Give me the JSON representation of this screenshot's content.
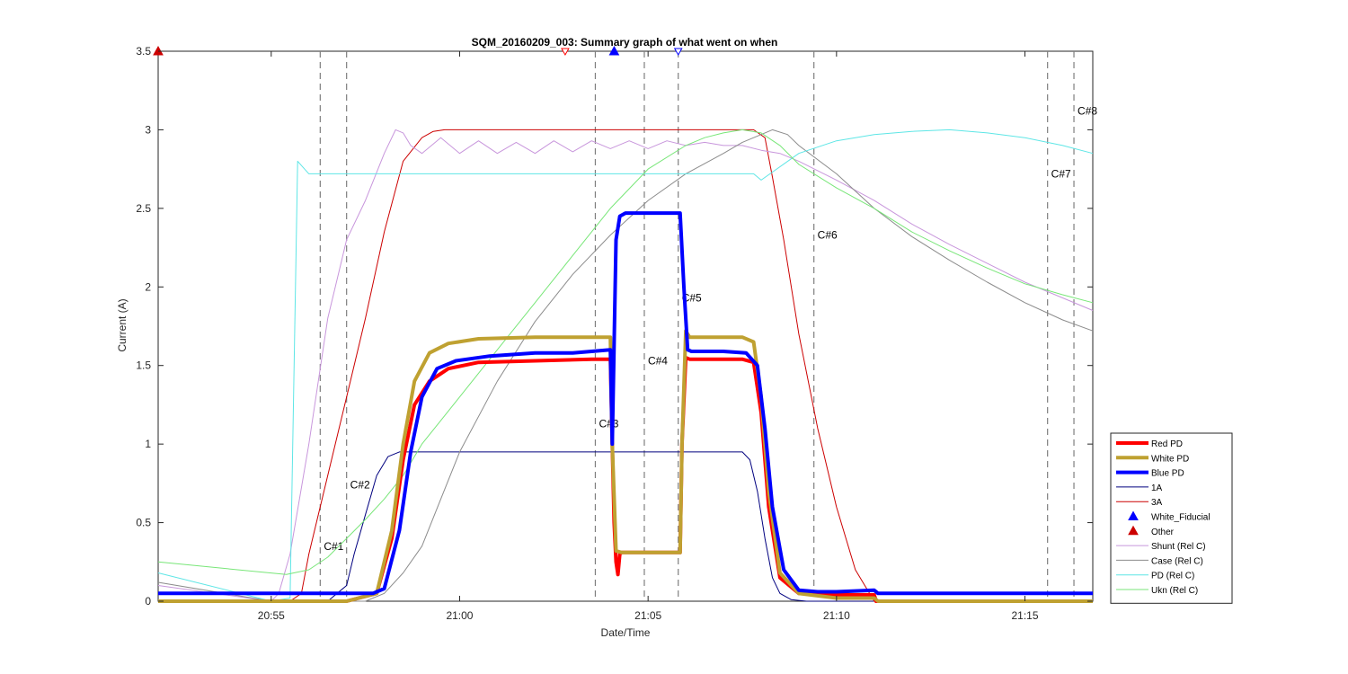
{
  "chart_data": {
    "type": "line",
    "title": "SQM_20160209_003: Summary graph of what went on when",
    "xlabel": "Date/Time",
    "ylabel": "Current (A)",
    "x_unit": "minutes",
    "xlim": [
      52.0,
      76.8
    ],
    "ylim": [
      0,
      3.5
    ],
    "x_ticks": [
      {
        "value": 55,
        "label": "20:55"
      },
      {
        "value": 60,
        "label": "21:00"
      },
      {
        "value": 65,
        "label": "21:05"
      },
      {
        "value": 70,
        "label": "21:10"
      },
      {
        "value": 75,
        "label": "21:15"
      }
    ],
    "y_ticks": [
      {
        "value": 0,
        "label": "0"
      },
      {
        "value": 0.5,
        "label": "0.5"
      },
      {
        "value": 1,
        "label": "1"
      },
      {
        "value": 1.5,
        "label": "1.5"
      },
      {
        "value": 2,
        "label": "2"
      },
      {
        "value": 2.5,
        "label": "2.5"
      },
      {
        "value": 3,
        "label": "3"
      },
      {
        "value": 3.5,
        "label": "3.5"
      }
    ],
    "grid": false,
    "legend_position": "bottom-right",
    "series": [
      {
        "name": "Red PD",
        "color": "#ff0000",
        "width": 4,
        "x": [
          52.0,
          55.0,
          57.0,
          57.8,
          58.2,
          58.5,
          58.8,
          59.2,
          59.7,
          60.5,
          62,
          63.5,
          64.0,
          64.05,
          64.1,
          64.15,
          64.2,
          64.25,
          64.3,
          64.4,
          65.0,
          65.5,
          65.85,
          65.9,
          66.0,
          66.1,
          66.5,
          67.5,
          67.8,
          68.0,
          68.2,
          68.5,
          69.0,
          70,
          71.0,
          71.05,
          71.1,
          76.8
        ],
        "y": [
          0.0,
          0.0,
          0.0,
          0.05,
          0.4,
          0.9,
          1.25,
          1.4,
          1.48,
          1.52,
          1.53,
          1.54,
          1.54,
          1.0,
          0.5,
          0.25,
          0.17,
          0.3,
          0.31,
          0.31,
          0.31,
          0.31,
          0.31,
          1.0,
          1.55,
          1.54,
          1.54,
          1.54,
          1.52,
          1.2,
          0.6,
          0.15,
          0.05,
          0.04,
          0.04,
          0.0,
          0.0,
          0.0
        ]
      },
      {
        "name": "White PD",
        "color": "#bfa131",
        "width": 4,
        "x": [
          52.0,
          55.0,
          57.0,
          57.8,
          58.2,
          58.5,
          58.8,
          59.2,
          59.7,
          60.5,
          62,
          63.5,
          64.0,
          64.05,
          64.15,
          64.3,
          65.0,
          65.85,
          65.9,
          66.0,
          66.1,
          66.5,
          67.5,
          67.8,
          68.0,
          68.2,
          68.5,
          69.0,
          70,
          71.0,
          71.1,
          76.8
        ],
        "y": [
          0.0,
          0.0,
          0.0,
          0.05,
          0.45,
          1.0,
          1.4,
          1.58,
          1.64,
          1.67,
          1.68,
          1.68,
          1.68,
          1.0,
          0.32,
          0.31,
          0.31,
          0.31,
          1.0,
          1.72,
          1.68,
          1.68,
          1.68,
          1.65,
          1.3,
          0.7,
          0.18,
          0.05,
          0.02,
          0.02,
          0.0,
          0.0
        ]
      },
      {
        "name": "Blue PD",
        "color": "#0000ff",
        "width": 4,
        "x": [
          52.0,
          55.0,
          57.7,
          58.0,
          58.4,
          58.7,
          59.0,
          59.4,
          59.9,
          60.8,
          62,
          63.0,
          64.0,
          64.05,
          64.15,
          64.25,
          64.4,
          64.6,
          65.0,
          65.5,
          65.85,
          65.95,
          66.05,
          66.15,
          66.5,
          67.0,
          67.6,
          67.9,
          68.1,
          68.3,
          68.6,
          69.0,
          69.5,
          70,
          71.0,
          71.1,
          76.8
        ],
        "y": [
          0.05,
          0.05,
          0.05,
          0.08,
          0.45,
          0.95,
          1.3,
          1.48,
          1.53,
          1.56,
          1.58,
          1.58,
          1.6,
          1.0,
          2.3,
          2.45,
          2.47,
          2.47,
          2.47,
          2.47,
          2.47,
          2.0,
          1.6,
          1.59,
          1.59,
          1.59,
          1.58,
          1.5,
          1.1,
          0.6,
          0.2,
          0.07,
          0.06,
          0.06,
          0.07,
          0.05,
          0.05
        ]
      },
      {
        "name": "1A",
        "color": "#00007f",
        "width": 1,
        "x": [
          52.0,
          56.5,
          57.0,
          57.2,
          57.5,
          57.8,
          58.1,
          58.4,
          58.8,
          59.5,
          60,
          62,
          64,
          66,
          67.5,
          67.7,
          67.9,
          68.1,
          68.3,
          68.5,
          68.8,
          69.2,
          70,
          71,
          76.8
        ],
        "y": [
          0.0,
          0.0,
          0.1,
          0.3,
          0.55,
          0.8,
          0.92,
          0.95,
          0.95,
          0.95,
          0.95,
          0.95,
          0.95,
          0.95,
          0.95,
          0.9,
          0.7,
          0.4,
          0.15,
          0.05,
          0.01,
          0.0,
          0.0,
          0.0,
          0.0
        ]
      },
      {
        "name": "3A",
        "color": "#cc0000",
        "width": 1,
        "x": [
          52.0,
          55.5,
          55.8,
          56.0,
          56.5,
          57.0,
          57.5,
          58.0,
          58.5,
          59.0,
          59.3,
          59.6,
          60,
          61,
          62,
          64,
          66,
          67.8,
          68.1,
          68.3,
          68.6,
          69.0,
          69.5,
          70.0,
          70.5,
          71.0,
          71.1,
          76.8
        ],
        "y": [
          0.0,
          0.0,
          0.05,
          0.3,
          0.8,
          1.3,
          1.8,
          2.35,
          2.8,
          2.95,
          2.99,
          3.0,
          3.0,
          3.0,
          3.0,
          3.0,
          3.0,
          3.0,
          2.95,
          2.7,
          2.3,
          1.7,
          1.1,
          0.6,
          0.2,
          0.0,
          0.0,
          0.0
        ]
      },
      {
        "name": "Shunt (Rel C)",
        "color": "#c896dc",
        "width": 1,
        "x": [
          52.0,
          55.0,
          55.2,
          55.5,
          56.0,
          56.5,
          57.0,
          57.5,
          58.0,
          58.3,
          58.5,
          58.7,
          59.0,
          59.5,
          60.0,
          60.5,
          61.0,
          61.5,
          62.0,
          62.5,
          63.0,
          63.5,
          64.0,
          64.5,
          65.0,
          65.5,
          66.0,
          66.5,
          67.0,
          67.5,
          68.0,
          68.5,
          69.0,
          70.0,
          71.0,
          72.0,
          73.0,
          74.0,
          75.0,
          76.0,
          76.8
        ],
        "y": [
          0.1,
          0.0,
          0.05,
          0.3,
          1.0,
          1.8,
          2.3,
          2.55,
          2.85,
          3.0,
          2.98,
          2.9,
          2.85,
          2.95,
          2.85,
          2.93,
          2.85,
          2.92,
          2.85,
          2.93,
          2.86,
          2.93,
          2.88,
          2.93,
          2.88,
          2.93,
          2.9,
          2.92,
          2.9,
          2.9,
          2.87,
          2.85,
          2.8,
          2.68,
          2.55,
          2.4,
          2.27,
          2.15,
          2.03,
          1.93,
          1.85
        ]
      },
      {
        "name": "Case (Rel C)",
        "color": "#8c8c8c",
        "width": 1,
        "x": [
          52.0,
          55.0,
          57.5,
          58.0,
          58.5,
          59.0,
          59.5,
          60.0,
          61.0,
          62.0,
          63.0,
          64.0,
          65.0,
          66.0,
          67.0,
          67.5,
          68.0,
          68.3,
          68.7,
          69.0,
          70.0,
          71.0,
          72.0,
          73.0,
          74.0,
          75.0,
          76.0,
          76.8
        ],
        "y": [
          0.12,
          0.0,
          0.0,
          0.05,
          0.18,
          0.35,
          0.65,
          0.95,
          1.4,
          1.78,
          2.08,
          2.33,
          2.55,
          2.72,
          2.85,
          2.92,
          2.97,
          3.0,
          2.97,
          2.9,
          2.72,
          2.5,
          2.32,
          2.17,
          2.03,
          1.9,
          1.79,
          1.72
        ]
      },
      {
        "name": "PD (Rel C)",
        "color": "#5ee6e6",
        "width": 1,
        "x": [
          52.0,
          55.0,
          55.5,
          55.7,
          56.0,
          60,
          64,
          67.8,
          68.0,
          69.0,
          70.0,
          71.0,
          72.0,
          73.0,
          74.0,
          75.0,
          76.0,
          76.8
        ],
        "y": [
          0.18,
          0.0,
          0.02,
          2.8,
          2.72,
          2.72,
          2.72,
          2.72,
          2.68,
          2.85,
          2.93,
          2.97,
          2.99,
          3.0,
          2.98,
          2.95,
          2.9,
          2.85
        ]
      },
      {
        "name": "Ukn (Rel C)",
        "color": "#78e678",
        "width": 1,
        "x": [
          52.0,
          55.4,
          56.0,
          56.5,
          57.0,
          57.5,
          58.0,
          58.5,
          59.0,
          59.5,
          60,
          61,
          62,
          63,
          64,
          65,
          66,
          66.5,
          67.0,
          67.5,
          68.0,
          68.5,
          69.0,
          70.0,
          71.0,
          72.0,
          73.0,
          74.0,
          75.0,
          76.0,
          76.8
        ],
        "y": [
          0.25,
          0.17,
          0.2,
          0.28,
          0.4,
          0.52,
          0.65,
          0.8,
          1.0,
          1.15,
          1.3,
          1.6,
          1.9,
          2.2,
          2.5,
          2.75,
          2.9,
          2.95,
          2.98,
          3.0,
          2.98,
          2.9,
          2.78,
          2.63,
          2.5,
          2.35,
          2.23,
          2.12,
          2.02,
          1.95,
          1.9
        ]
      }
    ],
    "cursors": [
      {
        "x": 56.3,
        "label": "C#1",
        "label_y": 0.35
      },
      {
        "x": 57.0,
        "label": "C#2",
        "label_y": 0.74
      },
      {
        "x": 63.6,
        "label": "C#3",
        "label_y": 1.13
      },
      {
        "x": 64.9,
        "label": "C#4",
        "label_y": 1.53
      },
      {
        "x": 65.8,
        "label": "C#5",
        "label_y": 1.93
      },
      {
        "x": 69.4,
        "label": "C#6",
        "label_y": 2.33
      },
      {
        "x": 75.6,
        "label": "C#7",
        "label_y": 2.72
      },
      {
        "x": 76.3,
        "label": "C#8",
        "label_y": 3.12
      }
    ],
    "markers": [
      {
        "series": "White_Fiducial",
        "x": 64.1,
        "y": 3.5,
        "color": "#0000ff",
        "shape": "triangle-up",
        "filled": true
      },
      {
        "series": "Other",
        "x": 52.0,
        "y": 3.5,
        "color": "#cc0000",
        "shape": "triangle-up",
        "filled": true
      },
      {
        "series": "Other",
        "x": 62.8,
        "y": 3.5,
        "color": "#ff0000",
        "shape": "triangle-down",
        "filled": false
      },
      {
        "series": "White_Fiducial",
        "x": 65.8,
        "y": 3.5,
        "color": "#0000ff",
        "shape": "triangle-down",
        "filled": false
      }
    ],
    "legend": [
      {
        "name": "Red PD",
        "kind": "line",
        "color": "#ff0000",
        "width": 4
      },
      {
        "name": "White PD",
        "kind": "line",
        "color": "#bfa131",
        "width": 4
      },
      {
        "name": "Blue PD",
        "kind": "line",
        "color": "#0000ff",
        "width": 4
      },
      {
        "name": "1A",
        "kind": "line",
        "color": "#00007f",
        "width": 1
      },
      {
        "name": "3A",
        "kind": "line",
        "color": "#cc0000",
        "width": 1
      },
      {
        "name": "White_Fiducial",
        "kind": "marker",
        "color": "#0000ff",
        "width": 1
      },
      {
        "name": "Other",
        "kind": "marker",
        "color": "#cc0000",
        "width": 1
      },
      {
        "name": "Shunt (Rel C)",
        "kind": "line",
        "color": "#c896dc",
        "width": 1
      },
      {
        "name": "Case (Rel C)",
        "kind": "line",
        "color": "#8c8c8c",
        "width": 1
      },
      {
        "name": "PD (Rel C)",
        "kind": "line",
        "color": "#5ee6e6",
        "width": 1
      },
      {
        "name": "Ukn (Rel C)",
        "kind": "line",
        "color": "#78e678",
        "width": 1
      }
    ]
  }
}
